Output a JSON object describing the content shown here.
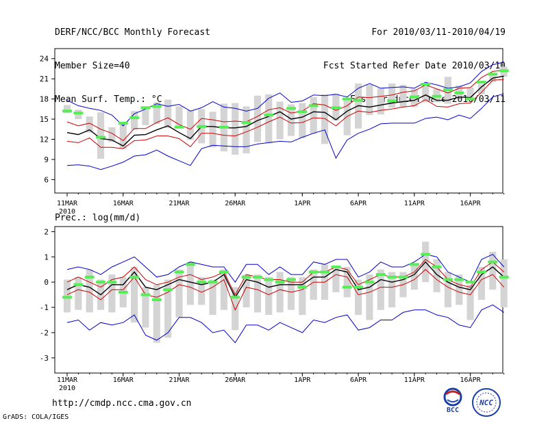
{
  "header": {
    "title": "DERF/NCC/BCC Monthly Forecast",
    "member_size": "Member Size=40",
    "variable": "Mean Surf. Temp.: °C",
    "period": "For 2010/03/11-2010/04/19",
    "started": "Fcst Started Refer Date 2010/03/10",
    "produced": "Fcst Produced Date 2010/03/11"
  },
  "footer": {
    "url": "http://cmdp.ncc.cma.gov.cn",
    "credit": "GrADS: COLA/IGES",
    "logo_left_text": "BCC",
    "logo_right_text": "NCC"
  },
  "colors": {
    "envelope": "#0000cc",
    "spread": "#cc0000",
    "mean": "#000000",
    "box": "#d4d4d4",
    "marker": "#55ee55"
  },
  "chart_data": [
    {
      "type": "line",
      "title": "Mean Surf. Temp.: °C",
      "x_tick_labels": [
        "11MAR",
        "16MAR",
        "21MAR",
        "26MAR",
        "1APR",
        "6APR",
        "11APR",
        "16APR"
      ],
      "x_year_label": "2010",
      "ylim": [
        4,
        25.5
      ],
      "yticks": [
        6,
        9,
        12,
        15,
        18,
        21,
        24
      ],
      "days": 40,
      "series": [
        {
          "name": "max",
          "values": [
            17.8,
            17.0,
            16.6,
            16.3,
            15.6,
            14.0,
            15.8,
            16.5,
            17.3,
            16.9,
            17.2,
            16.2,
            16.7,
            17.6,
            16.8,
            16.6,
            16.2,
            16.6,
            18.1,
            18.9,
            17.5,
            17.7,
            18.6,
            18.5,
            18.7,
            18.3,
            19.6,
            20.3,
            19.6,
            19.7,
            19.8,
            19.6,
            20.5,
            20.1,
            19.6,
            19.8,
            20.4,
            22.1,
            23.1,
            23.5
          ]
        },
        {
          "name": "upper",
          "values": [
            14.6,
            14.0,
            14.4,
            13.5,
            12.9,
            11.8,
            13.6,
            13.6,
            14.5,
            15.2,
            14.2,
            13.5,
            15.1,
            14.9,
            14.6,
            14.7,
            14.6,
            15.4,
            16.4,
            16.7,
            15.9,
            16.2,
            17.3,
            17.1,
            16.3,
            17.0,
            18.3,
            18.2,
            18.4,
            18.6,
            19.0,
            19.2,
            20.1,
            19.5,
            18.9,
            19.6,
            19.7,
            21.2,
            22.1,
            22.3
          ]
        },
        {
          "name": "mean",
          "values": [
            13.0,
            12.7,
            13.4,
            12.1,
            11.9,
            11.0,
            12.6,
            12.7,
            13.4,
            14.0,
            13.0,
            12.1,
            13.9,
            13.9,
            13.7,
            13.7,
            13.9,
            14.8,
            15.4,
            16.1,
            15.0,
            15.3,
            16.1,
            16.0,
            14.9,
            16.2,
            17.0,
            16.8,
            17.1,
            17.4,
            17.6,
            17.8,
            18.6,
            17.8,
            17.8,
            18.3,
            18.2,
            19.8,
            21.1,
            21.4
          ]
        },
        {
          "name": "lower",
          "values": [
            11.7,
            11.5,
            12.2,
            10.8,
            10.8,
            10.6,
            11.8,
            11.9,
            12.5,
            12.5,
            12.1,
            10.9,
            12.9,
            12.9,
            12.6,
            12.5,
            13.1,
            13.8,
            14.6,
            15.3,
            14.4,
            14.5,
            15.2,
            15.1,
            14.0,
            15.4,
            16.2,
            16.0,
            16.3,
            16.5,
            16.8,
            17.0,
            17.9,
            16.9,
            16.8,
            17.3,
            17.4,
            19.0,
            20.8,
            20.9
          ]
        },
        {
          "name": "min",
          "values": [
            8.1,
            8.2,
            8.0,
            7.5,
            8.0,
            8.6,
            9.5,
            9.7,
            10.4,
            9.5,
            8.8,
            8.1,
            10.6,
            11.1,
            11.0,
            10.9,
            10.9,
            11.3,
            11.5,
            11.7,
            11.6,
            12.3,
            12.9,
            13.4,
            9.2,
            11.9,
            12.9,
            13.5,
            14.3,
            14.4,
            14.4,
            14.4,
            15.1,
            15.3,
            14.9,
            15.6,
            15.1,
            16.6,
            18.3,
            18.8
          ]
        },
        {
          "name": "box_top",
          "values": [
            17.1,
            16.4,
            15.4,
            16.0,
            13.8,
            14.5,
            16.2,
            16.5,
            17.5,
            17.9,
            16.9,
            16.3,
            16.5,
            16.1,
            17.3,
            17.4,
            16.9,
            18.5,
            18.7,
            17.6,
            17.2,
            17.4,
            18.3,
            18.7,
            18.8,
            17.8,
            20.3,
            20.1,
            19.6,
            20.3,
            20.1,
            19.5,
            20.3,
            19.5,
            21.3,
            20.0,
            19.7,
            20.2,
            21.7,
            22.8
          ]
        },
        {
          "name": "box_bottom",
          "values": [
            15.9,
            15.0,
            13.0,
            9.1,
            11.6,
            10.6,
            13.4,
            14.1,
            14.3,
            13.7,
            14.0,
            11.9,
            11.4,
            10.8,
            10.2,
            9.7,
            9.9,
            11.6,
            11.4,
            12.0,
            12.5,
            12.2,
            12.8,
            11.3,
            14.8,
            12.6,
            13.6,
            15.6,
            15.7,
            16.7,
            16.8,
            16.8,
            17.5,
            17.5,
            17.3,
            18.4,
            18.1,
            18.7,
            20.5,
            21.3
          ]
        },
        {
          "name": "observed",
          "values": [
            16.2,
            15.9,
            null,
            12.3,
            null,
            14.4,
            15.2,
            16.7,
            16.9,
            null,
            13.8,
            null,
            13.9,
            null,
            13.8,
            null,
            14.5,
            null,
            15.6,
            null,
            16.6,
            16.1,
            17.0,
            null,
            16.7,
            18.0,
            17.8,
            null,
            null,
            17.7,
            null,
            18.3,
            20.2,
            18.4,
            19.4,
            18.9,
            18.0,
            20.5,
            21.7,
            22.2
          ]
        }
      ]
    },
    {
      "type": "line",
      "title": "Prec.: log(mm/d)",
      "x_tick_labels": [
        "11MAR",
        "16MAR",
        "21MAR",
        "26MAR",
        "1APR",
        "6APR",
        "11APR",
        "16APR"
      ],
      "x_year_label": "2010",
      "ylim": [
        -3.6,
        2.2
      ],
      "yticks": [
        -3,
        -2,
        -1,
        0,
        1,
        2
      ],
      "days": 40,
      "series": [
        {
          "name": "max",
          "values": [
            0.5,
            0.6,
            0.5,
            0.3,
            0.6,
            0.8,
            1.0,
            0.6,
            0.2,
            0.3,
            0.6,
            0.8,
            0.7,
            0.6,
            0.6,
            0.0,
            0.7,
            0.7,
            0.3,
            0.6,
            0.3,
            0.3,
            0.8,
            0.7,
            0.9,
            0.9,
            0.2,
            0.4,
            0.8,
            0.6,
            0.6,
            0.8,
            1.1,
            1.0,
            0.4,
            0.2,
            0.0,
            0.9,
            1.1,
            0.6
          ]
        },
        {
          "name": "upper",
          "values": [
            0.0,
            0.2,
            0.0,
            -0.2,
            0.1,
            0.2,
            0.6,
            0.1,
            -0.1,
            0.0,
            0.2,
            0.3,
            0.1,
            0.2,
            0.4,
            -0.5,
            0.3,
            0.2,
            0.1,
            0.1,
            0.0,
            0.0,
            0.4,
            0.4,
            0.6,
            0.5,
            -0.1,
            0.1,
            0.3,
            0.2,
            0.2,
            0.4,
            0.9,
            0.6,
            0.1,
            -0.1,
            -0.2,
            0.5,
            0.8,
            0.4
          ]
        },
        {
          "name": "mean",
          "values": [
            -0.3,
            -0.1,
            -0.2,
            -0.5,
            -0.1,
            -0.1,
            0.4,
            -0.2,
            -0.3,
            -0.1,
            0.1,
            0.0,
            -0.1,
            0.0,
            0.3,
            -0.6,
            0.1,
            0.0,
            -0.2,
            -0.1,
            -0.1,
            -0.1,
            0.2,
            0.2,
            0.5,
            0.4,
            -0.3,
            -0.2,
            0.1,
            0.0,
            0.1,
            0.3,
            0.8,
            0.3,
            0.0,
            -0.2,
            -0.3,
            0.3,
            0.6,
            0.2
          ]
        },
        {
          "name": "lower",
          "values": [
            -0.5,
            -0.3,
            -0.4,
            -0.7,
            -0.3,
            -0.3,
            0.2,
            -0.5,
            -0.6,
            -0.4,
            -0.1,
            -0.2,
            -0.4,
            -0.2,
            0.1,
            -1.1,
            -0.2,
            -0.3,
            -0.5,
            -0.3,
            -0.4,
            -0.3,
            0.0,
            0.0,
            0.3,
            0.2,
            -0.5,
            -0.4,
            -0.2,
            -0.2,
            -0.1,
            0.1,
            0.5,
            0.1,
            -0.2,
            -0.4,
            -0.5,
            0.1,
            0.3,
            -0.2
          ]
        },
        {
          "name": "min",
          "values": [
            -1.6,
            -1.5,
            -1.9,
            -1.6,
            -1.7,
            -1.6,
            -1.3,
            -2.1,
            -2.3,
            -2.0,
            -1.4,
            -1.4,
            -1.6,
            -2.0,
            -1.9,
            -2.4,
            -1.7,
            -1.7,
            -1.9,
            -1.6,
            -1.8,
            -2.0,
            -1.5,
            -1.6,
            -1.4,
            -1.3,
            -1.9,
            -1.8,
            -1.5,
            -1.5,
            -1.2,
            -1.1,
            -1.1,
            -1.3,
            -1.4,
            -1.7,
            -1.8,
            -1.1,
            -0.9,
            -1.2
          ]
        },
        {
          "name": "box_top",
          "values": [
            0.1,
            0.2,
            0.5,
            0.1,
            0.3,
            0.2,
            0.6,
            -0.2,
            -0.1,
            0.1,
            0.5,
            0.8,
            0.2,
            0.1,
            0.5,
            -0.2,
            0.3,
            0.3,
            0.2,
            0.4,
            0.2,
            0.2,
            0.5,
            0.7,
            0.6,
            0.6,
            0.1,
            0.3,
            0.5,
            0.4,
            0.4,
            0.7,
            1.6,
            0.9,
            0.4,
            0.3,
            -0.1,
            0.6,
            1.2,
            0.9
          ]
        },
        {
          "name": "box_bottom",
          "values": [
            -1.2,
            -1.1,
            -1.2,
            -1.1,
            -1.2,
            -1.0,
            -1.6,
            -1.8,
            -2.4,
            -2.2,
            -1.4,
            -0.9,
            -0.9,
            -1.3,
            -1.1,
            -1.9,
            -1.0,
            -1.2,
            -1.3,
            -1.2,
            -1.1,
            -1.3,
            -0.7,
            -0.7,
            -0.4,
            -0.6,
            -1.3,
            -1.5,
            -1.1,
            -1.0,
            -0.6,
            -0.3,
            0.0,
            -0.4,
            -1.0,
            -0.9,
            -1.5,
            -0.7,
            -0.3,
            -1.0
          ]
        },
        {
          "name": "observed",
          "values": [
            -0.6,
            -0.1,
            0.2,
            0.0,
            0.0,
            -0.4,
            0.2,
            -0.5,
            -0.7,
            -0.3,
            0.4,
            0.7,
            0.0,
            0.0,
            0.4,
            -0.6,
            0.2,
            0.2,
            0.1,
            0.0,
            0.1,
            -0.2,
            0.4,
            0.4,
            0.6,
            -0.2,
            -0.2,
            0.0,
            0.3,
            0.2,
            0.2,
            0.7,
            1.1,
            0.6,
            0.1,
            0.1,
            0.0,
            0.4,
            0.8,
            0.2
          ]
        }
      ]
    }
  ]
}
